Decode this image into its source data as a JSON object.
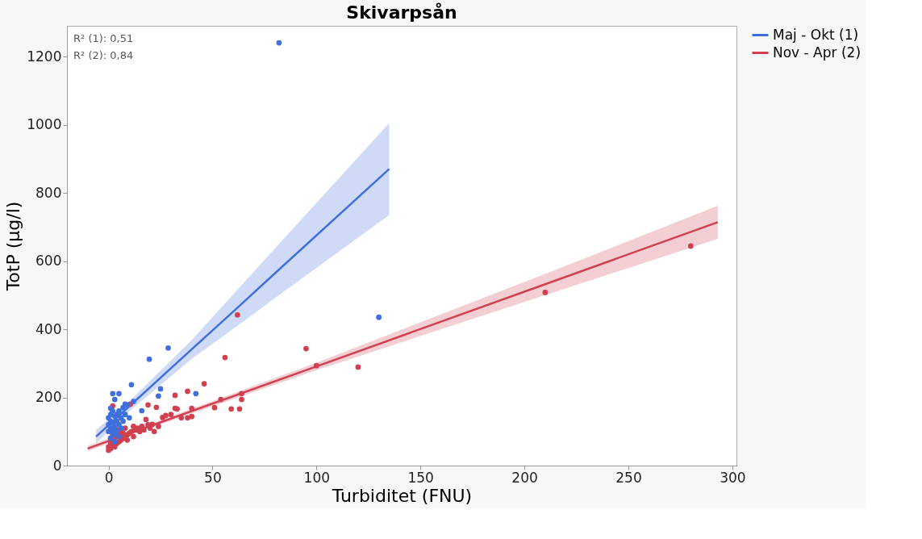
{
  "chart_data": {
    "type": "scatter",
    "title": "Skivarpsån",
    "xlabel": "Turbiditet (FNU)",
    "ylabel": "TotP (µg/l)",
    "xlim": [
      -20,
      302
    ],
    "ylim": [
      0,
      1290
    ],
    "xticks": [
      0,
      50,
      100,
      150,
      200,
      250,
      300
    ],
    "yticks": [
      0,
      200,
      400,
      600,
      800,
      1000,
      1200
    ],
    "grid": false,
    "legend": "right",
    "marker": "circle",
    "annotations": [
      "R² (1): 0,51",
      "R² (2): 0,84"
    ],
    "series": [
      {
        "type": "line",
        "name": "Maj - Okt (1)",
        "line_style": "solid",
        "marker": "none",
        "color": "#3f6fdc",
        "x": [
          -6,
          10,
          40,
          62,
          80,
          135
        ],
        "values": [
          85,
          174,
          341,
          463,
          564,
          870
        ],
        "lower": [
          65,
          159,
          313,
          410,
          491,
          735
        ],
        "upper": [
          105,
          189,
          368,
          516,
          637,
          1005
        ]
      },
      {
        "type": "line",
        "name": "Nov - Apr (2)",
        "line_style": "solid",
        "marker": "none",
        "color": "#d04050",
        "x": [
          -10,
          20,
          100,
          210,
          293
        ],
        "values": [
          50,
          116,
          291,
          532,
          714
        ],
        "lower": [
          42,
          110,
          280,
          500,
          665
        ],
        "upper": [
          58,
          122,
          302,
          562,
          762
        ]
      },
      {
        "color": "#d04050",
        "x": [
          0,
          0,
          1,
          1,
          1,
          2,
          2,
          2,
          2,
          3,
          4,
          4,
          4,
          5,
          5,
          6,
          6,
          7,
          7,
          8,
          8,
          9,
          9,
          10,
          10.5,
          11,
          12,
          12,
          13,
          14,
          15,
          16,
          17,
          18,
          19,
          19,
          20,
          21,
          22,
          23,
          24,
          26,
          27.5,
          30,
          32,
          32,
          33,
          35,
          38,
          38,
          40,
          40,
          46,
          51,
          54,
          56,
          59,
          62,
          63,
          64,
          64,
          95,
          100,
          120,
          210,
          280
        ],
        "values": [
          45,
          55,
          50,
          65,
          80,
          60,
          75,
          90,
          175,
          55,
          65,
          85,
          105,
          70,
          90,
          75,
          100,
          80,
          95,
          85,
          110,
          90,
          75,
          95,
          180,
          100,
          85,
          115,
          105,
          110,
          100,
          115,
          105,
          135,
          178,
          120,
          110,
          121,
          100,
          171,
          115,
          141,
          147,
          150,
          168,
          206,
          166,
          140,
          140,
          218,
          144,
          168,
          240,
          170,
          194,
          317,
          166,
          442,
          166,
          194,
          211,
          343,
          293,
          289,
          508,
          644
        ]
      },
      {
        "color": "#3f6fdc",
        "x": [
          0,
          0,
          0,
          1,
          1,
          1,
          1,
          1,
          2,
          2,
          2,
          2,
          2,
          3,
          3,
          3,
          3,
          3,
          4,
          4,
          4,
          5,
          5,
          5,
          5,
          6,
          6,
          7,
          7,
          8,
          8,
          9,
          10,
          12,
          11,
          16,
          19.6,
          28.7,
          24,
          25,
          42,
          82,
          130
        ],
        "values": [
          100,
          120,
          140,
          80,
          110,
          130,
          150,
          168,
          90,
          105,
          125,
          160,
          211,
          70,
          95,
          115,
          145,
          194,
          100,
          130,
          150,
          85,
          120,
          160,
          211,
          110,
          140,
          130,
          170,
          150,
          180,
          178,
          140,
          188,
          237,
          161,
          312,
          345,
          204,
          225,
          211,
          1240,
          435
        ]
      }
    ]
  }
}
